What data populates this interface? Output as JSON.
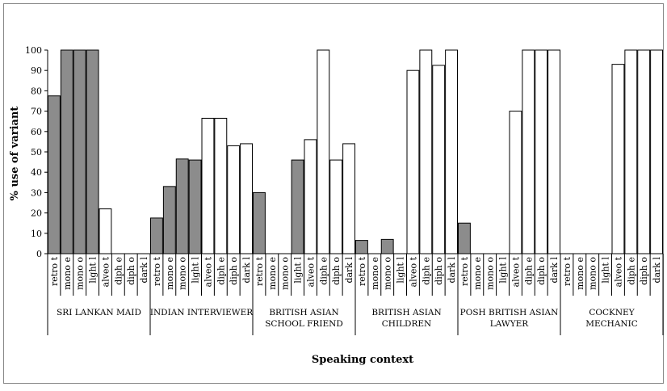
{
  "chart_data": {
    "type": "bar",
    "ylabel": "% use of variant",
    "xlabel": "Speaking context",
    "ylim": [
      0,
      100
    ],
    "yticks": [
      0,
      10,
      20,
      30,
      40,
      50,
      60,
      70,
      80,
      90,
      100
    ],
    "grid": false,
    "legend": "none",
    "variant_labels": [
      "retro t",
      "mono e",
      "mono o",
      "light l",
      "alveo t",
      "diph e",
      "diph o",
      "dark l"
    ],
    "colors": {
      "first_four": "#8c8c8c",
      "last_four": "#ffffff",
      "outline": "#000000"
    },
    "groups": [
      {
        "name": [
          "SRI LANKAN MAID"
        ],
        "values": [
          77.5,
          100,
          100,
          100,
          22,
          0,
          0,
          0
        ]
      },
      {
        "name": [
          "INDIAN INTERVIEWER"
        ],
        "values": [
          17.5,
          33,
          46.5,
          46,
          66.5,
          66.5,
          53,
          54
        ]
      },
      {
        "name": [
          "BRITISH ASIAN",
          "SCHOOL FRIEND"
        ],
        "values": [
          30,
          0,
          0,
          46,
          56,
          100,
          46,
          54
        ]
      },
      {
        "name": [
          "BRITISH ASIAN",
          "CHILDREN"
        ],
        "values": [
          6.5,
          0,
          7,
          0,
          90,
          100,
          92.5,
          100
        ]
      },
      {
        "name": [
          "POSH BRITISH ASIAN",
          "LAWYER"
        ],
        "values": [
          15,
          0,
          0,
          0,
          70,
          100,
          100,
          100
        ]
      },
      {
        "name": [
          "COCKNEY",
          "MECHANIC"
        ],
        "values": [
          0,
          0,
          0,
          0,
          93,
          100,
          100,
          100
        ]
      }
    ]
  }
}
